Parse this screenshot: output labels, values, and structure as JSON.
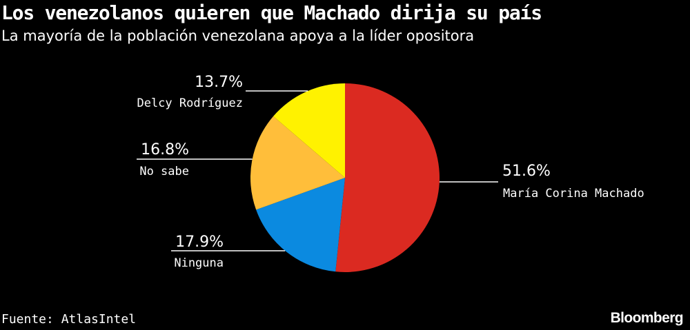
{
  "chart_data": {
    "type": "pie",
    "title": "Los venezolanos quieren que Machado dirija su país",
    "subtitle": "La mayoría de la población venezolana apoya a la líder opositora",
    "slices": [
      {
        "name": "María Corina Machado",
        "value": 51.6,
        "label": "51.6%",
        "color": "#DB2A21"
      },
      {
        "name": "Ninguna",
        "value": 17.9,
        "label": "17.9%",
        "color": "#0B8AE0"
      },
      {
        "name": "No sabe",
        "value": 16.8,
        "label": "16.8%",
        "color": "#FFBE3A"
      },
      {
        "name": "Delcy Rodríguez",
        "value": 13.7,
        "label": "13.7%",
        "color": "#FFF200"
      }
    ],
    "start_angle": "top",
    "direction": "clockwise",
    "source": "Fuente: AtlasIntel"
  },
  "brand": "Bloomberg"
}
